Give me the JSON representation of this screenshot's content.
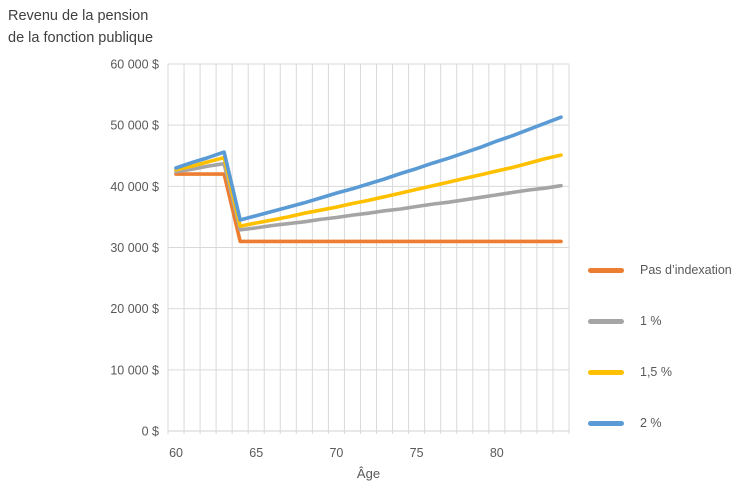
{
  "header": {
    "title_line1": "Revenu de la pension",
    "title_line2": "de la fonction publique"
  },
  "chart_data": {
    "type": "line",
    "title": "Revenu de la pension de la fonction publique",
    "xlabel": "Âge",
    "ylabel": "Revenu de la pension de la fonction publique",
    "x": [
      60,
      61,
      62,
      63,
      64,
      65,
      66,
      67,
      68,
      69,
      70,
      71,
      72,
      73,
      74,
      75,
      76,
      77,
      78,
      79,
      80,
      81,
      82,
      83,
      84
    ],
    "x_ticks": [
      60,
      65,
      70,
      75,
      80
    ],
    "y_ticks": [
      0,
      10000,
      20000,
      30000,
      40000,
      50000,
      60000
    ],
    "y_tick_labels": [
      "0 $",
      "10 000 $",
      "20 000 $",
      "30 000 $",
      "40 000 $",
      "50 000 $",
      "60 000 $"
    ],
    "ylim": [
      0,
      60000
    ],
    "grid": true,
    "grid_color": "#D9D9D9",
    "axis_color": "#D9D9D9",
    "legend_position": "right",
    "series": [
      {
        "name": "Pas d’indexation",
        "color": "#ED7D31",
        "values": [
          42000,
          42000,
          42000,
          42000,
          31000,
          31000,
          31000,
          31000,
          31000,
          31000,
          31000,
          31000,
          31000,
          31000,
          31000,
          31000,
          31000,
          31000,
          31000,
          31000,
          31000,
          31000,
          31000,
          31000,
          31000
        ]
      },
      {
        "name": "1 %",
        "color": "#A5A5A5",
        "values": [
          42400,
          42800,
          43300,
          43700,
          32900,
          33200,
          33600,
          33900,
          34200,
          34600,
          34900,
          35300,
          35600,
          36000,
          36300,
          36700,
          37100,
          37400,
          37800,
          38200,
          38600,
          39000,
          39400,
          39700,
          40100
        ]
      },
      {
        "name": "1,5 %",
        "color": "#FFC000",
        "values": [
          42700,
          43300,
          44000,
          44700,
          33500,
          34000,
          34500,
          35000,
          35600,
          36100,
          36600,
          37200,
          37700,
          38300,
          38900,
          39500,
          40100,
          40700,
          41300,
          41900,
          42500,
          43100,
          43800,
          44500,
          45100
        ]
      },
      {
        "name": "2 %",
        "color": "#5B9BD5",
        "values": [
          43000,
          43900,
          44700,
          45600,
          34500,
          35200,
          35900,
          36600,
          37300,
          38100,
          38900,
          39600,
          40400,
          41200,
          42100,
          42900,
          43800,
          44600,
          45500,
          46400,
          47400,
          48300,
          49300,
          50300,
          51300
        ]
      }
    ]
  }
}
